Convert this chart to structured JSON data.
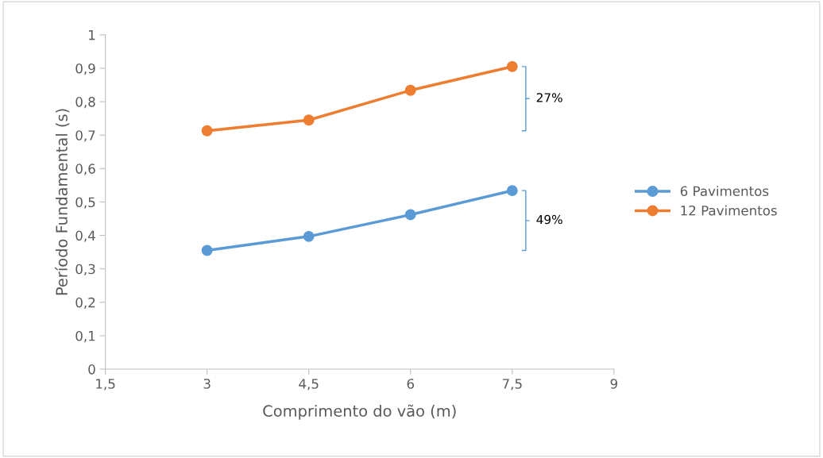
{
  "chart_data": {
    "type": "line",
    "xlabel": "Comprimento do vão (m)",
    "ylabel": "Período Fundamental (s)",
    "x": [
      3,
      4.5,
      6,
      7.5
    ],
    "series": [
      {
        "name": "6 Pavimentos",
        "color": "#5b9bd5",
        "values": [
          0.355,
          0.397,
          0.462,
          0.534
        ]
      },
      {
        "name": "12 Pavimentos",
        "color": "#ed7d31",
        "values": [
          0.713,
          0.745,
          0.834,
          0.905
        ]
      }
    ],
    "xlim": [
      1.5,
      9
    ],
    "xticks": [
      {
        "value": 1.5,
        "label": "1,5"
      },
      3,
      {
        "value": 4.5,
        "label": "4,5"
      },
      6,
      {
        "value": 7.5,
        "label": "7,5"
      },
      9
    ],
    "ylim": [
      0,
      1
    ],
    "yticks": [
      0,
      {
        "value": 0.1,
        "label": "0,1"
      },
      {
        "value": 0.2,
        "label": "0,2"
      },
      {
        "value": 0.3,
        "label": "0,3"
      },
      {
        "value": 0.4,
        "label": "0,4"
      },
      {
        "value": 0.5,
        "label": "0,5"
      },
      {
        "value": 0.6,
        "label": "0,6"
      },
      {
        "value": 0.7,
        "label": "0,7"
      },
      {
        "value": 0.8,
        "label": "0,8"
      },
      {
        "value": 0.9,
        "label": "0,9"
      },
      1
    ],
    "annotations": [
      "27%",
      "49%"
    ],
    "grid": false,
    "legend": "right",
    "marker": "circle",
    "line_style": "solid"
  }
}
